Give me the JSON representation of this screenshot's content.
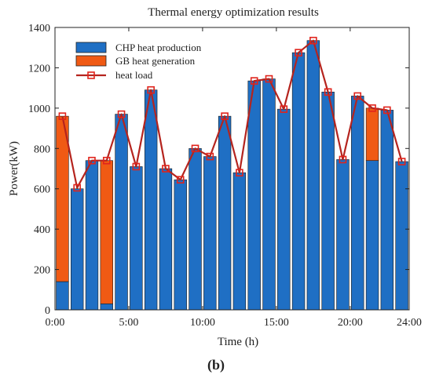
{
  "chart_data": {
    "type": "bar",
    "title": "Thermal energy optimization results",
    "xlabel": "Time (h)",
    "ylabel": "Power(kW)",
    "panel_label": "(b)",
    "xlim": [
      0,
      24
    ],
    "ylim": [
      0,
      1400
    ],
    "x_ticks": [
      "0:00",
      "5:00",
      "10:00",
      "15:00",
      "20:00",
      "24:00"
    ],
    "y_ticks": [
      "0",
      "200",
      "400",
      "600",
      "800",
      "1000",
      "1200",
      "1400"
    ],
    "x": [
      1,
      2,
      3,
      4,
      5,
      6,
      7,
      8,
      9,
      10,
      11,
      12,
      13,
      14,
      15,
      16,
      17,
      18,
      19,
      20,
      21,
      22,
      23,
      24
    ],
    "legend_position": "top-left",
    "grid": false,
    "series": [
      {
        "name": "CHP heat production",
        "kind": "stacked-bar",
        "color": "#1f6fc4",
        "values": [
          140,
          600,
          740,
          30,
          970,
          710,
          1090,
          700,
          645,
          800,
          760,
          960,
          680,
          1135,
          1145,
          995,
          1275,
          1335,
          1080,
          745,
          1060,
          740,
          990,
          735
        ]
      },
      {
        "name": "GB heat generation",
        "kind": "stacked-bar",
        "color": "#f05a14",
        "values": [
          820,
          0,
          0,
          710,
          0,
          0,
          0,
          0,
          0,
          0,
          0,
          0,
          0,
          0,
          0,
          0,
          0,
          0,
          0,
          0,
          0,
          260,
          0,
          0
        ]
      },
      {
        "name": "heat load",
        "kind": "line",
        "color": "#b5241e",
        "marker_color": "#e0241c",
        "values": [
          960,
          605,
          740,
          740,
          970,
          710,
          1090,
          700,
          645,
          800,
          760,
          960,
          680,
          1135,
          1145,
          995,
          1275,
          1335,
          1080,
          745,
          1060,
          1000,
          990,
          735
        ]
      }
    ]
  }
}
